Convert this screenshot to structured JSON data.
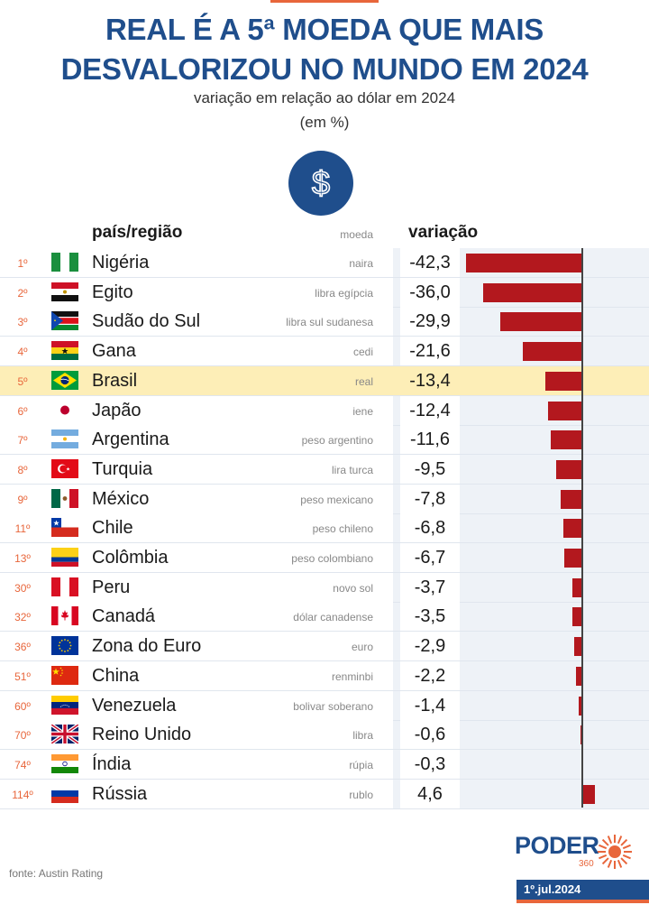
{
  "title_line1": "REAL É A 5ª MOEDA QUE MAIS",
  "title_line2": "DESVALORIZOU NO MUNDO EM 2024",
  "subtitle_line1": "variação em relação ao dólar em 2024",
  "subtitle_line2": "(em %)",
  "icon": "dollar-icon",
  "header": {
    "country": "país/região",
    "currency": "moeda",
    "variation": "variação"
  },
  "source": "fonte: Austin Rating",
  "logo": {
    "name": "PODER",
    "sub": "360"
  },
  "date": "1º.jul.2024",
  "colors": {
    "title": "#1f4e8c",
    "bar": "#b3181e",
    "accent": "#e8663b",
    "highlight": "#fdeeb7"
  },
  "chart_data": {
    "type": "bar",
    "title": "REAL É A 5ª MOEDA QUE MAIS DESVALORIZOU NO MUNDO EM 2024",
    "subtitle": "variação em relação ao dólar em 2024 (em %)",
    "rows": [
      {
        "rank": "1º",
        "country": "Nigéria",
        "currency": "naira",
        "value": -42.3,
        "label": "-42,3",
        "flag": "nigeria-flag-icon"
      },
      {
        "rank": "2º",
        "country": "Egito",
        "currency": "libra egípcia",
        "value": -36.0,
        "label": "-36,0",
        "flag": "egypt-flag-icon"
      },
      {
        "rank": "3º",
        "country": "Sudão do Sul",
        "currency": "libra sul sudanesa",
        "value": -29.9,
        "label": "-29,9",
        "flag": "south-sudan-flag-icon"
      },
      {
        "rank": "4º",
        "country": "Gana",
        "currency": "cedi",
        "value": -21.6,
        "label": "-21,6",
        "flag": "ghana-flag-icon"
      },
      {
        "rank": "5º",
        "country": "Brasil",
        "currency": "real",
        "value": -13.4,
        "label": "-13,4",
        "flag": "brazil-flag-icon",
        "highlight": true
      },
      {
        "rank": "6º",
        "country": "Japão",
        "currency": "iene",
        "value": -12.4,
        "label": "-12,4",
        "flag": "japan-flag-icon"
      },
      {
        "rank": "7º",
        "country": "Argentina",
        "currency": "peso argentino",
        "value": -11.6,
        "label": "-11,6",
        "flag": "argentina-flag-icon"
      },
      {
        "rank": "8º",
        "country": "Turquia",
        "currency": "lira turca",
        "value": -9.5,
        "label": "-9,5",
        "flag": "turkey-flag-icon"
      },
      {
        "rank": "9º",
        "country": "México",
        "currency": "peso mexicano",
        "value": -7.8,
        "label": "-7,8",
        "flag": "mexico-flag-icon"
      },
      {
        "rank": "11º",
        "country": "Chile",
        "currency": "peso chileno",
        "value": -6.8,
        "label": "-6,8",
        "flag": "chile-flag-icon"
      },
      {
        "rank": "13º",
        "country": "Colômbia",
        "currency": "peso colombiano",
        "value": -6.7,
        "label": "-6,7",
        "flag": "colombia-flag-icon"
      },
      {
        "rank": "30º",
        "country": "Peru",
        "currency": "novo sol",
        "value": -3.7,
        "label": "-3,7",
        "flag": "peru-flag-icon"
      },
      {
        "rank": "32º",
        "country": "Canadá",
        "currency": "dólar canadense",
        "value": -3.5,
        "label": "-3,5",
        "flag": "canada-flag-icon"
      },
      {
        "rank": "36º",
        "country": "Zona do Euro",
        "currency": "euro",
        "value": -2.9,
        "label": "-2,9",
        "flag": "eu-flag-icon"
      },
      {
        "rank": "51º",
        "country": "China",
        "currency": "renminbi",
        "value": -2.2,
        "label": "-2,2",
        "flag": "china-flag-icon"
      },
      {
        "rank": "60º",
        "country": "Venezuela",
        "currency": "bolivar soberano",
        "value": -1.4,
        "label": "-1,4",
        "flag": "venezuela-flag-icon"
      },
      {
        "rank": "70º",
        "country": "Reino Unido",
        "currency": "libra",
        "value": -0.6,
        "label": "-0,6",
        "flag": "uk-flag-icon"
      },
      {
        "rank": "74º",
        "country": "Índia",
        "currency": "rúpia",
        "value": -0.3,
        "label": "-0,3",
        "flag": "india-flag-icon"
      },
      {
        "rank": "114º",
        "country": "Rússia",
        "currency": "rublo",
        "value": 4.6,
        "label": "4,6",
        "flag": "russia-flag-icon"
      }
    ]
  }
}
